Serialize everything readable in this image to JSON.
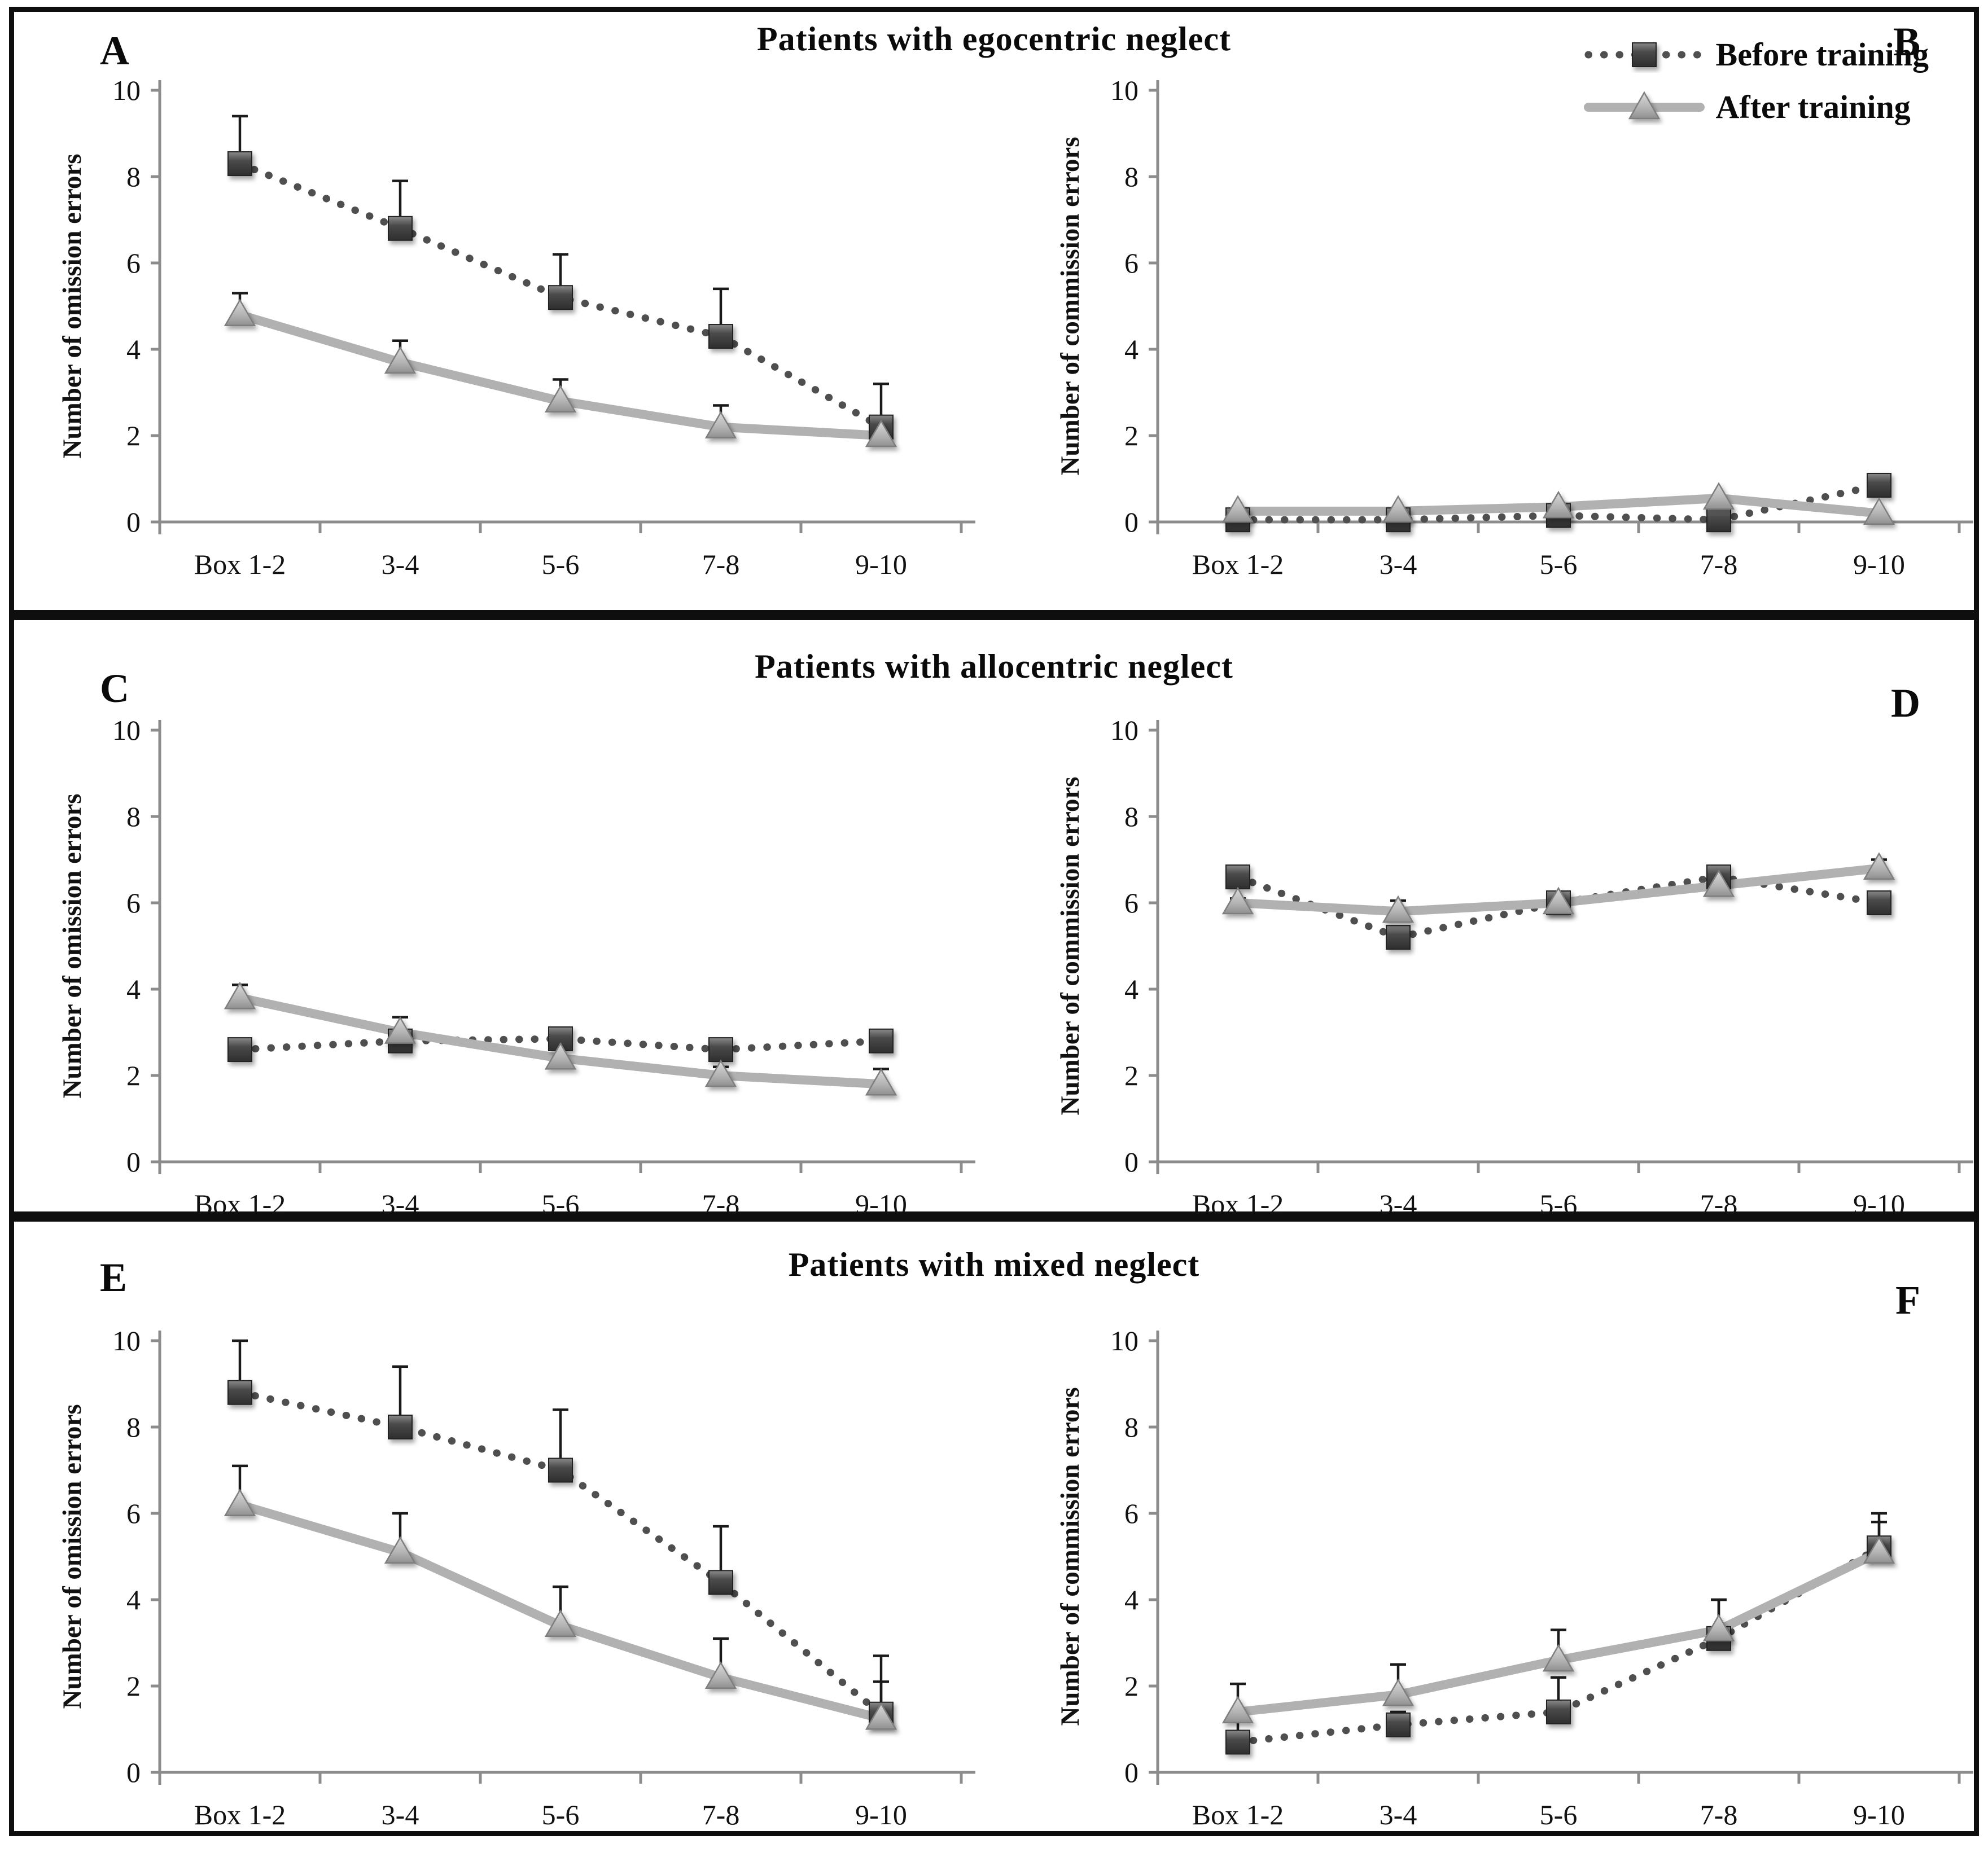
{
  "rows": [
    {
      "title": "Patients with egocentric neglect",
      "left_letter": "A",
      "right_letter": "B"
    },
    {
      "title": "Patients with allocentric neglect",
      "left_letter": "C",
      "right_letter": "D"
    },
    {
      "title": "Patients with mixed neglect",
      "left_letter": "E",
      "right_letter": "F"
    }
  ],
  "legend": {
    "before": "Before training",
    "after": "After training"
  },
  "colors": {
    "before_line": "#4f4f4f",
    "before_marker_dark": "#303030",
    "before_marker_light": "#868686",
    "after_line": "#b1b1b1",
    "after_marker_dark": "#969696",
    "after_marker_light": "#d8d8d8",
    "axis": "#8c8c8c",
    "error_bar": "#1a1a1a"
  },
  "chart_data": [
    {
      "panel": "A",
      "type": "line",
      "row_title": "Patients with egocentric neglect",
      "ylabel": "Number of omission errors",
      "categories": [
        "Box 1-2",
        "3-4",
        "5-6",
        "7-8",
        "9-10"
      ],
      "ylim": [
        0,
        10
      ],
      "yticks": [
        0,
        2,
        4,
        6,
        8,
        10
      ],
      "grid": false,
      "series": [
        {
          "name": "Before training",
          "style": "dotted-square",
          "values": [
            8.3,
            6.8,
            5.2,
            4.3,
            2.2
          ],
          "err_up": [
            1.1,
            1.1,
            1.0,
            1.1,
            1.0
          ]
        },
        {
          "name": "After training",
          "style": "solid-triangle",
          "values": [
            4.8,
            3.7,
            2.8,
            2.2,
            2.0
          ],
          "err_up": [
            0.5,
            0.5,
            0.5,
            0.5,
            0.45
          ]
        }
      ]
    },
    {
      "panel": "B",
      "type": "line",
      "row_title": "Patients with egocentric neglect",
      "ylabel": "Number of commission errors",
      "categories": [
        "Box 1-2",
        "3-4",
        "5-6",
        "7-8",
        "9-10"
      ],
      "ylim": [
        0,
        10
      ],
      "yticks": [
        0,
        2,
        4,
        6,
        8,
        10
      ],
      "grid": false,
      "series": [
        {
          "name": "Before training",
          "style": "dotted-square",
          "values": [
            0.05,
            0.05,
            0.15,
            0.05,
            0.85
          ],
          "err_up": [
            0,
            0,
            0,
            0,
            0
          ]
        },
        {
          "name": "After training",
          "style": "solid-triangle",
          "values": [
            0.25,
            0.25,
            0.35,
            0.55,
            0.2
          ],
          "err_up": [
            0,
            0,
            0,
            0,
            0
          ]
        }
      ]
    },
    {
      "panel": "C",
      "type": "line",
      "row_title": "Patients with allocentric neglect",
      "ylabel": "Number of omission errors",
      "categories": [
        "Box 1-2",
        "3-4",
        "5-6",
        "7-8",
        "9-10"
      ],
      "ylim": [
        0,
        10
      ],
      "yticks": [
        0,
        2,
        4,
        6,
        8,
        10
      ],
      "grid": false,
      "series": [
        {
          "name": "Before training",
          "style": "dotted-square",
          "values": [
            2.6,
            2.8,
            2.85,
            2.6,
            2.8
          ],
          "err_up": [
            0.1,
            0.1,
            0.15,
            0.15,
            0.2
          ]
        },
        {
          "name": "After training",
          "style": "solid-triangle",
          "values": [
            3.8,
            3.0,
            2.4,
            2.0,
            1.8
          ],
          "err_up": [
            0.3,
            0.35,
            0.2,
            0.2,
            0.35
          ]
        }
      ]
    },
    {
      "panel": "D",
      "type": "line",
      "row_title": "Patients with allocentric neglect",
      "ylabel": "Number of commission errors",
      "categories": [
        "Box 1-2",
        "3-4",
        "5-6",
        "7-8",
        "9-10"
      ],
      "ylim": [
        0,
        10
      ],
      "yticks": [
        0,
        2,
        4,
        6,
        8,
        10
      ],
      "grid": false,
      "series": [
        {
          "name": "Before training",
          "style": "dotted-square",
          "values": [
            6.6,
            5.2,
            6.0,
            6.6,
            6.0
          ],
          "err_up": [
            0.1,
            0.15,
            0.1,
            0.1,
            0.1
          ]
        },
        {
          "name": "After training",
          "style": "solid-triangle",
          "values": [
            6.0,
            5.8,
            6.0,
            6.4,
            6.8
          ],
          "err_up": [
            0.1,
            0.25,
            0.1,
            0.1,
            0.2
          ]
        }
      ]
    },
    {
      "panel": "E",
      "type": "line",
      "row_title": "Patients with mixed neglect",
      "ylabel": "Number of omission errors",
      "categories": [
        "Box 1-2",
        "3-4",
        "5-6",
        "7-8",
        "9-10"
      ],
      "ylim": [
        0,
        10
      ],
      "yticks": [
        0,
        2,
        4,
        6,
        8,
        10
      ],
      "grid": false,
      "series": [
        {
          "name": "Before training",
          "style": "dotted-square",
          "values": [
            8.8,
            8.0,
            7.0,
            4.4,
            1.35
          ],
          "err_up": [
            1.2,
            1.4,
            1.4,
            1.3,
            0.75
          ]
        },
        {
          "name": "After training",
          "style": "solid-triangle",
          "values": [
            6.2,
            5.1,
            3.4,
            2.2,
            1.25
          ],
          "err_up": [
            0.9,
            0.9,
            0.9,
            0.9,
            1.45
          ]
        }
      ]
    },
    {
      "panel": "F",
      "type": "line",
      "row_title": "Patients with mixed neglect",
      "ylabel": "Number of commission errors",
      "categories": [
        "Box 1-2",
        "3-4",
        "5-6",
        "7-8",
        "9-10"
      ],
      "ylim": [
        0,
        10
      ],
      "yticks": [
        0,
        2,
        4,
        6,
        8,
        10
      ],
      "grid": false,
      "series": [
        {
          "name": "Before training",
          "style": "dotted-square",
          "values": [
            0.7,
            1.1,
            1.4,
            3.1,
            5.2
          ],
          "err_up": [
            0.6,
            0.3,
            0.8,
            0.9,
            0.6
          ]
        },
        {
          "name": "After training",
          "style": "solid-triangle",
          "values": [
            1.4,
            1.8,
            2.6,
            3.3,
            5.1
          ],
          "err_up": [
            0.65,
            0.7,
            0.7,
            0.7,
            0.9
          ]
        }
      ]
    }
  ]
}
